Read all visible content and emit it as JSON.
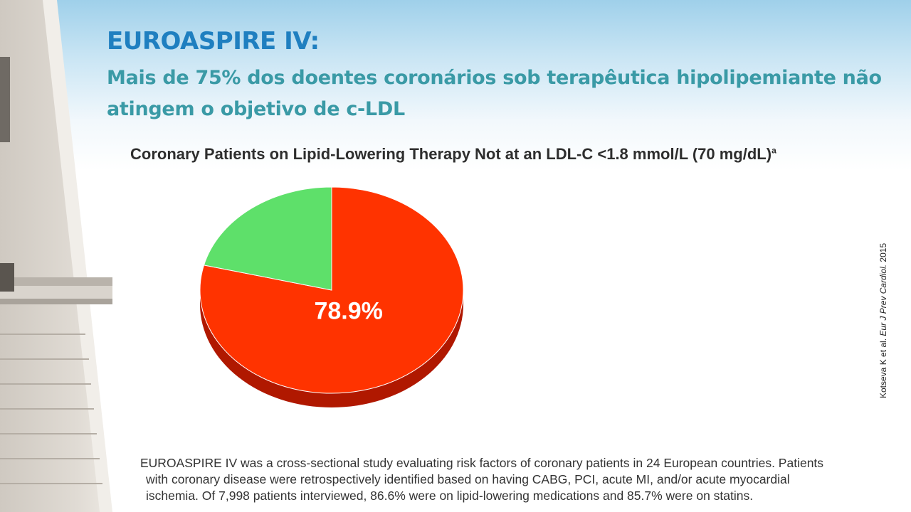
{
  "slide": {
    "title": "EUROASPIRE IV:",
    "subtitle": "Mais de 75% dos doentes coronários sob terapêutica hipolipemiante não atingem o objetivo de c-LDL",
    "citation_authors": "Kotseva K et al. ",
    "citation_journal": "Eur J Prev Cardiol.",
    "citation_year": " 2015",
    "footnote_lines": [
      "EUROASPIRE IV was a cross-sectional study evaluating risk factors of coronary patients in 24 European countries. Patients",
      "with coronary disease were retrospectively identified based on having CABG, PCI, acute MI, and/or acute myocardial",
      "ischemia. Of 7,998 patients interviewed, 86.6% were on lipid-lowering medications and 85.7% were on statins."
    ]
  },
  "chart_data": {
    "type": "pie",
    "title": "Coronary Patients on Lipid-Lowering Therapy Not at an LDL-C <1.8 mmol/L (70 mg/dL)",
    "title_superscript": "a",
    "slices": [
      {
        "value": 78.9,
        "label": "78.9%",
        "color": "#ff3300",
        "side_color": "#b01800"
      },
      {
        "value": 21.1,
        "label": "",
        "color": "#5ee06a",
        "side_color": "#2f9a3a"
      }
    ]
  }
}
